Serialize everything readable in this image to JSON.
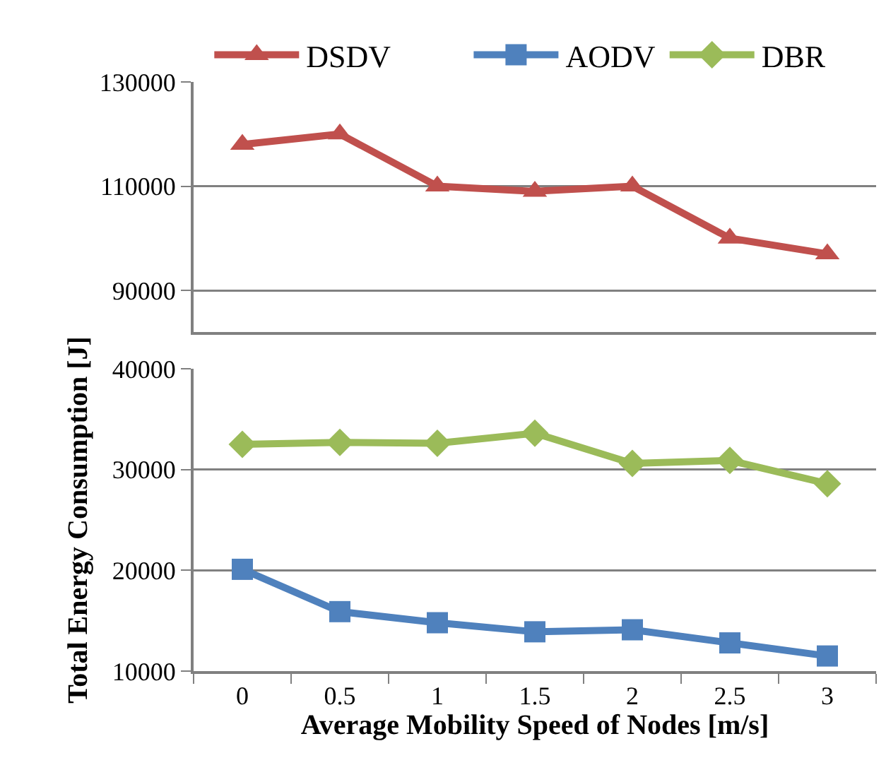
{
  "chart_data": [
    {
      "type": "line",
      "categories": [
        "0",
        "0.5",
        "1",
        "1.5",
        "2",
        "2.5",
        "3"
      ],
      "ylim": [
        82000,
        130000
      ],
      "yticks": [
        90000,
        110000,
        130000
      ],
      "grid": "y",
      "legend": "top",
      "tick_labels": "y",
      "line_style": "solid",
      "series": [
        {
          "name": "DSDV",
          "color": "#c0504d",
          "marker": "triangle",
          "values": [
            118000,
            120000,
            110000,
            109000,
            110000,
            100000,
            97000
          ]
        }
      ]
    },
    {
      "type": "line",
      "categories": [
        "0",
        "0.5",
        "1",
        "1.5",
        "2",
        "2.5",
        "3"
      ],
      "xlabel": "Average Mobility Speed of Nodes [m/s]",
      "ylabel": "Total Energy Consumption [J]",
      "ylim": [
        10000,
        40000
      ],
      "yticks": [
        10000,
        20000,
        30000,
        40000
      ],
      "grid": "y",
      "legend": "top",
      "line_style": "solid",
      "series": [
        {
          "name": "AODV",
          "color": "#4f81bd",
          "marker": "square",
          "values": [
            20100,
            15900,
            14800,
            13900,
            14100,
            12800,
            11500
          ]
        },
        {
          "name": "DBR",
          "color": "#9bbb59",
          "marker": "diamond",
          "values": [
            32500,
            32700,
            32600,
            33600,
            30600,
            30900,
            28600
          ]
        }
      ]
    }
  ]
}
